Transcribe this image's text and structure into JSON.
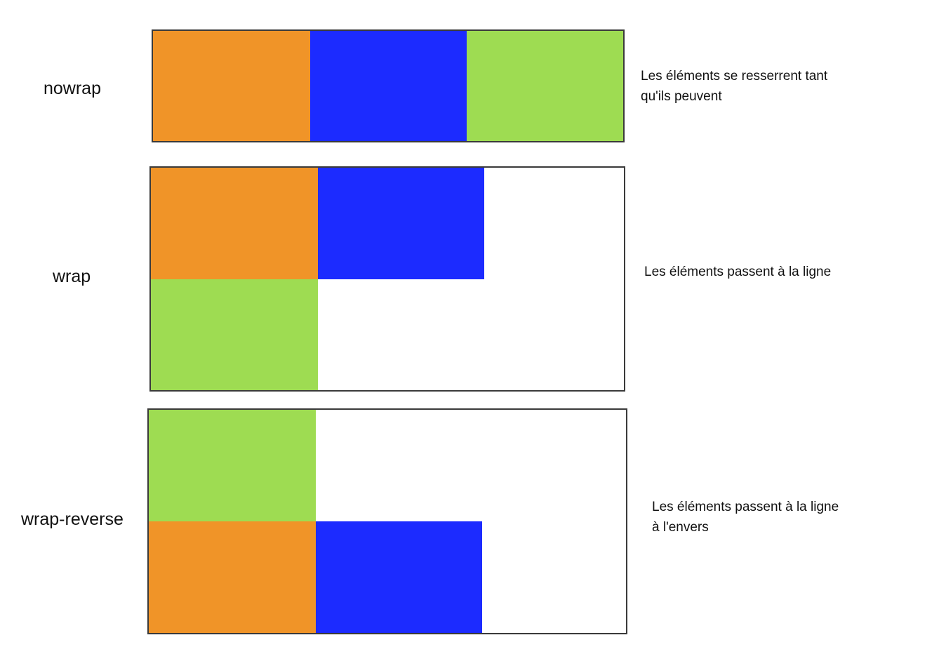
{
  "colors": {
    "orange": "#F09428",
    "blue": "#1C2BFF",
    "green": "#9EDC52",
    "border": "#3a3a3a"
  },
  "rows": [
    {
      "label": "nowrap",
      "note_lines": [
        "Les éléments se resserrent tant",
        "qu'ils peuvent"
      ]
    },
    {
      "label": "wrap",
      "note_lines": [
        "Les éléments passent à la ligne"
      ]
    },
    {
      "label": "wrap-reverse",
      "note_lines": [
        "Les éléments passent à la ligne",
        "à l'envers"
      ]
    }
  ]
}
